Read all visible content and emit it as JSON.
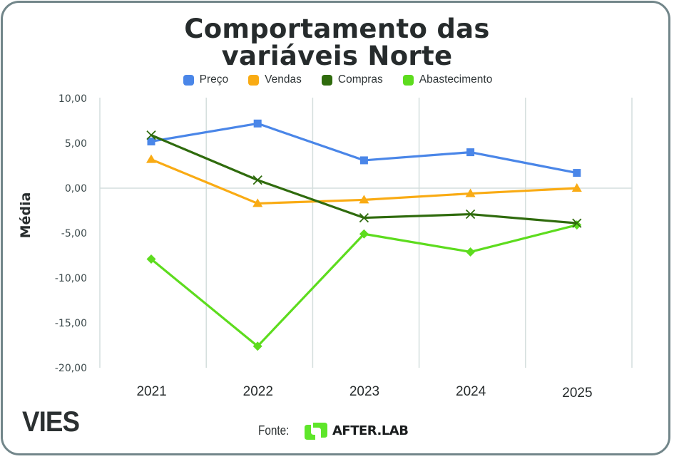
{
  "title_lines": [
    "Comportamento das",
    "variáveis Norte"
  ],
  "footer": {
    "brand": "VIES",
    "source_label": "Fonte:",
    "source_name": "AFTER.LAB",
    "source_logo_icon": "afterlab-logo-icon",
    "source_logo_color": "#5ee62a"
  },
  "chart_data": {
    "type": "line",
    "title": "Comportamento das variáveis Norte",
    "xlabel": "",
    "ylabel": "Média",
    "categories": [
      "2021",
      "2022",
      "2023",
      "2024",
      "2025"
    ],
    "ylim": [
      -20,
      10
    ],
    "yticks": [
      10,
      5,
      0,
      -5,
      -10,
      -15,
      -20
    ],
    "ytick_labels": [
      "10,00",
      "5,00",
      "0,00",
      "-5,00",
      "-10,00",
      "-15,00",
      "-20,00"
    ],
    "grid": "vertical",
    "legend_position": "top-center",
    "series": [
      {
        "name": "Preço",
        "color": "#4a86e8",
        "marker": "square",
        "values": [
          5.2,
          7.2,
          3.1,
          4.0,
          1.7
        ]
      },
      {
        "name": "Vendas",
        "color": "#f9ab14",
        "marker": "triangle",
        "values": [
          3.2,
          -1.7,
          -1.3,
          -0.6,
          0.0
        ]
      },
      {
        "name": "Compras",
        "color": "#2f6b0d",
        "marker": "x",
        "values": [
          5.9,
          0.9,
          -3.3,
          -2.9,
          -3.9
        ]
      },
      {
        "name": "Abastecimento",
        "color": "#5ddc1e",
        "marker": "diamond",
        "values": [
          -7.9,
          -17.6,
          -5.1,
          -7.1,
          -4.1
        ]
      }
    ]
  }
}
